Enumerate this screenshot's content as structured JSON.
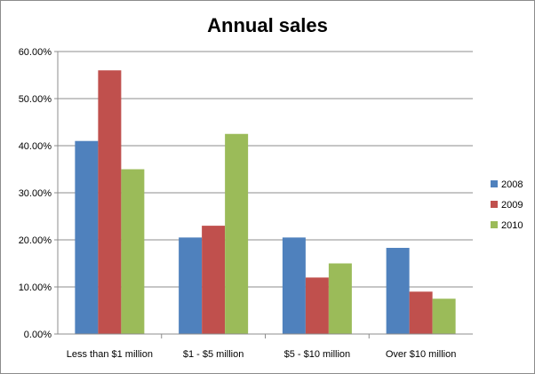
{
  "chart_data": {
    "type": "bar",
    "title": "Annual sales",
    "xlabel": "",
    "ylabel": "",
    "categories": [
      "Less than  $1 million",
      "$1 - $5 million",
      "$5 - $10 million",
      "Over $10 million"
    ],
    "series": [
      {
        "name": "2008",
        "color": "#4f81bd",
        "values": [
          41.0,
          20.5,
          20.5,
          18.3
        ]
      },
      {
        "name": "2009",
        "color": "#c0504d",
        "values": [
          56.0,
          23.0,
          12.0,
          9.0
        ]
      },
      {
        "name": "2010",
        "color": "#9bbb59",
        "values": [
          35.0,
          42.5,
          15.0,
          7.5
        ]
      }
    ],
    "ylim": [
      0,
      60
    ],
    "yticks": [
      "0.00%",
      "10.00%",
      "20.00%",
      "30.00%",
      "40.00%",
      "50.00%",
      "60.00%"
    ],
    "y_unit": "percent",
    "grid": true,
    "legend_position": "right"
  }
}
